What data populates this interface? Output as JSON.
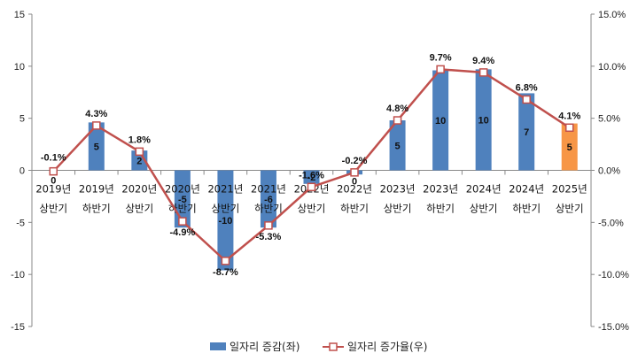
{
  "chart_data": {
    "type": "bar+line",
    "categories": [
      [
        "2019년",
        "상반기"
      ],
      [
        "2019년",
        "하반기"
      ],
      [
        "2020년",
        "상반기"
      ],
      [
        "2020년",
        "하반기"
      ],
      [
        "2021년",
        "상반기"
      ],
      [
        "2021년",
        "하반기"
      ],
      [
        "2022년",
        "상반기"
      ],
      [
        "2022년",
        "하반기"
      ],
      [
        "2023년",
        "상반기"
      ],
      [
        "2023년",
        "하반기"
      ],
      [
        "2024년",
        "상반기"
      ],
      [
        "2024년",
        "하반기"
      ],
      [
        "2025년",
        "상반기"
      ]
    ],
    "series": [
      {
        "name": "일자리 증감(좌)",
        "type": "bar",
        "axis": "left",
        "values": [
          0,
          5,
          2,
          -5,
          -10,
          -6,
          -2,
          0,
          5,
          10,
          10,
          7,
          5
        ],
        "labels": [
          "0",
          "5",
          "2",
          "-5",
          "-10",
          "-6",
          "-2",
          "0",
          "5",
          "10",
          "10",
          "7",
          "5"
        ],
        "bar_heights": [
          0,
          4.6,
          1.9,
          -5.5,
          -9.6,
          -5.5,
          -1.3,
          -0.4,
          4.8,
          9.6,
          9.7,
          7.4,
          4.5
        ],
        "color": "#4f81bd",
        "highlight_color": "#f79646",
        "highlight_index": 12
      },
      {
        "name": "일자리 증가율(우)",
        "type": "line",
        "axis": "right",
        "values": [
          -0.1,
          4.3,
          1.8,
          -4.9,
          -8.7,
          -5.3,
          -1.6,
          -0.2,
          4.8,
          9.7,
          9.4,
          6.8,
          4.1
        ],
        "labels": [
          "-0.1%",
          "4.3%",
          "1.8%",
          "-4.9%",
          "-8.7%",
          "-5.3%",
          "-1.6%",
          "-0.2%",
          "4.8%",
          "9.7%",
          "9.4%",
          "6.8%",
          "4.1%"
        ],
        "color": "#c0504d",
        "highlight_label_color": "#c0504d",
        "highlight_index": 12
      }
    ],
    "left_axis": {
      "min": -15,
      "max": 15,
      "step": 5,
      "ticks": [
        "-15",
        "-10",
        "-5",
        "0",
        "5",
        "10",
        "15"
      ]
    },
    "right_axis": {
      "min": -15,
      "max": 15,
      "step": 5,
      "ticks": [
        "-15.0%",
        "-10.0%",
        "-5.0%",
        "0.0%",
        "5.0%",
        "10.0%",
        "15.0%"
      ]
    },
    "grid": false,
    "legend_position": "bottom"
  }
}
